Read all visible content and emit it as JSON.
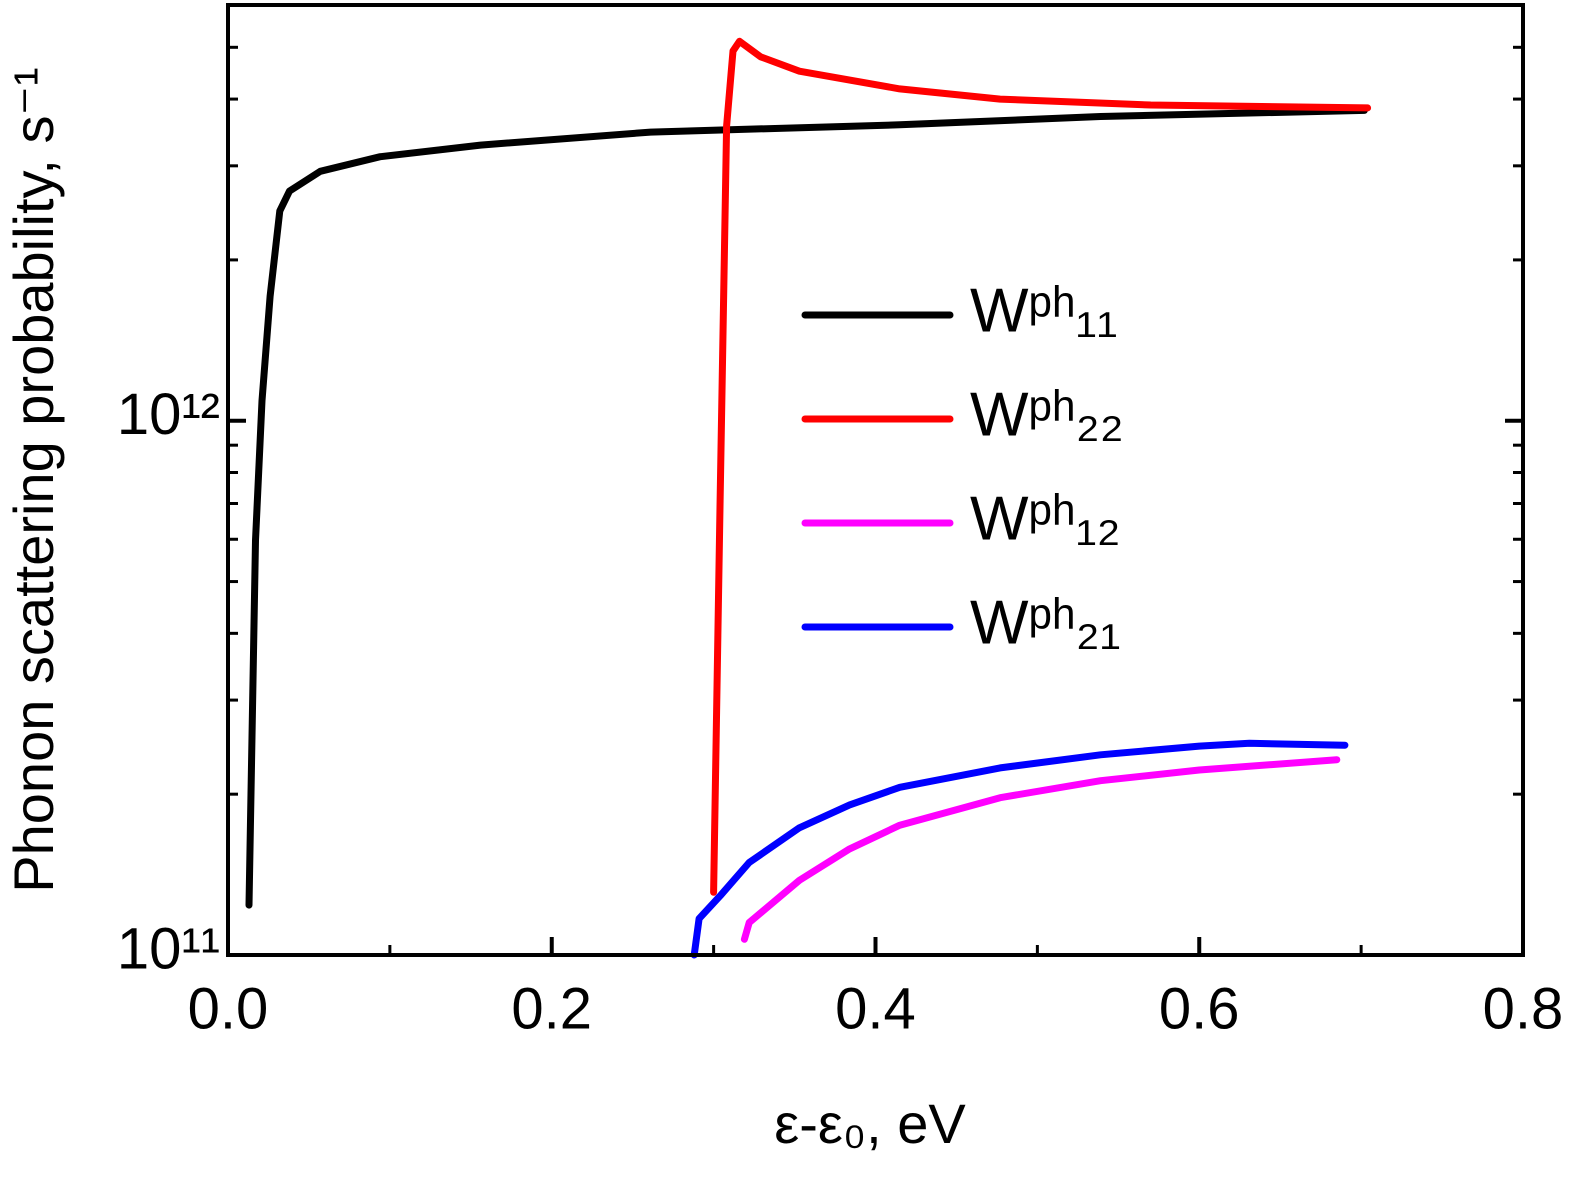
{
  "chart_data": {
    "type": "line",
    "xlabel": "ε-ε₀, eV",
    "ylabel": "Phonon scattering probability, s⁻¹",
    "xlim": [
      0,
      0.8
    ],
    "xticks": [
      {
        "value": 0,
        "label": "0.0"
      },
      0.2,
      0.4,
      0.6,
      0.8
    ],
    "minor_xticks": [
      0.1,
      0.3,
      0.5,
      0.7
    ],
    "ylim": [
      100000000000.0,
      6000000000000.0
    ],
    "yscale": "log",
    "yticks": [
      {
        "value": 100000000000.0,
        "label": "10¹¹"
      },
      {
        "value": 1000000000000.0,
        "label": "10¹²"
      }
    ],
    "minor_yticks": [
      200000000000.0,
      300000000000.0,
      400000000000.0,
      500000000000.0,
      600000000000.0,
      700000000000.0,
      800000000000.0,
      900000000000.0,
      2000000000000.0,
      3000000000000.0,
      4000000000000.0,
      5000000000000.0
    ],
    "grid": false,
    "legend": "center-right",
    "series": [
      {
        "name": "Wᵖʰ₁₁",
        "color": "#000000",
        "x": [
          0.013,
          0.017,
          0.021,
          0.026,
          0.032,
          0.038,
          0.057,
          0.094,
          0.156,
          0.261,
          0.415,
          0.539,
          0.702
        ],
        "values": [
          124000000000.0,
          597000000000.0,
          1090000000000.0,
          1710000000000.0,
          2470000000000.0,
          2690000000000.0,
          2930000000000.0,
          3120000000000.0,
          3280000000000.0,
          3470000000000.0,
          3580000000000.0,
          3710000000000.0,
          3810000000000.0
        ]
      },
      {
        "name": "Wᵖʰ₂₂",
        "color": "#ff0000",
        "x": [
          0.3,
          0.304,
          0.308,
          0.312,
          0.316,
          0.329,
          0.353,
          0.415,
          0.477,
          0.57,
          0.704
        ],
        "values": [
          131000000000.0,
          708000000000.0,
          3560000000000.0,
          4920000000000.0,
          5130000000000.0,
          4800000000000.0,
          4510000000000.0,
          4180000000000.0,
          4000000000000.0,
          3900000000000.0,
          3850000000000.0
        ]
      },
      {
        "name": "Wᵖʰ₁₂",
        "color": "#ff00ff",
        "x": [
          0.319,
          0.322,
          0.353,
          0.384,
          0.415,
          0.477,
          0.539,
          0.6,
          0.685
        ],
        "values": [
          107000000000.0,
          115000000000.0,
          138000000000.0,
          158000000000.0,
          175000000000.0,
          197000000000.0,
          212000000000.0,
          222000000000.0,
          232000000000.0
        ]
      },
      {
        "name": "Wᵖʰ₂₁",
        "color": "#0000ff",
        "x": [
          0.288,
          0.291,
          0.304,
          0.322,
          0.353,
          0.384,
          0.415,
          0.477,
          0.539,
          0.6,
          0.631,
          0.69
        ],
        "values": [
          100000000000.0,
          117000000000.0,
          129000000000.0,
          149000000000.0,
          173000000000.0,
          191000000000.0,
          206000000000.0,
          224000000000.0,
          237000000000.0,
          246000000000.0,
          249000000000.0,
          247000000000.0
        ]
      }
    ]
  }
}
